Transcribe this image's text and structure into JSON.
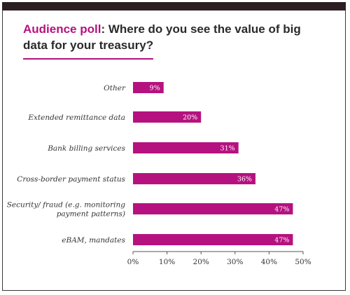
{
  "title": {
    "accent": "Audience poll",
    "rest": ": Where do you see the value of big data for your treasury?"
  },
  "colors": {
    "bar": "#b5127f",
    "accent": "#b5127f",
    "axis": "#555555",
    "text": "#2a2a2a"
  },
  "chart_data": {
    "type": "bar",
    "orientation": "horizontal",
    "title": "Audience poll: Where do you see the value of big data for your treasury?",
    "categories": [
      "Other",
      "Extended remittance data",
      "Bank billing services",
      "Cross-border payment status",
      "Security/ fraud (e.g. monitoring payment patterns)",
      "eBAM, mandates"
    ],
    "category_lines": [
      [
        "Other"
      ],
      [
        "Extended remittance data"
      ],
      [
        "Bank billing services"
      ],
      [
        "Cross-border payment status"
      ],
      [
        "Security/ fraud (e.g. monitoring",
        "payment patterns)"
      ],
      [
        "eBAM, mandates"
      ]
    ],
    "values": [
      9,
      20,
      31,
      36,
      47,
      47
    ],
    "value_labels": [
      "9%",
      "20%",
      "31%",
      "36%",
      "47%",
      "47%"
    ],
    "xlim": [
      0,
      50
    ],
    "ticks": [
      0,
      10,
      20,
      30,
      40,
      50
    ],
    "tick_labels": [
      "0%",
      "10%",
      "20%",
      "30%",
      "40%",
      "50%"
    ],
    "grid": false,
    "legend": "none"
  }
}
